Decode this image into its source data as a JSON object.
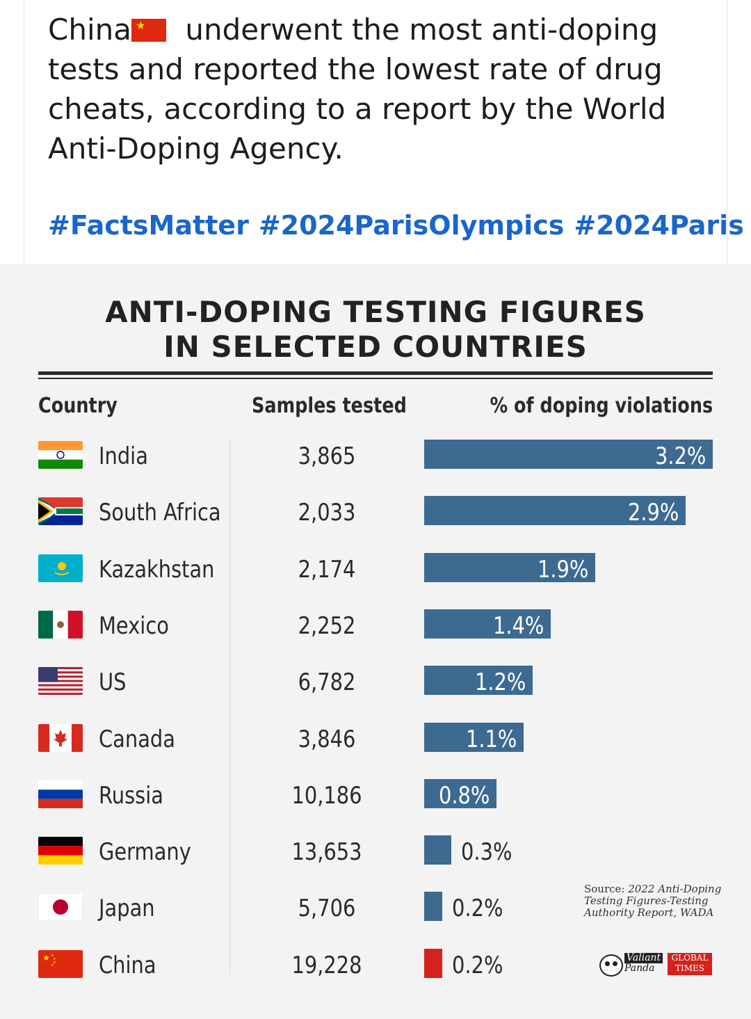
{
  "post": {
    "text_prefix": "China",
    "text_rest": " underwent the most anti-doping tests and reported the lowest rate of drug cheats, according to a report by the World Anti-Doping Agency.",
    "hashtags": [
      "#FactsMatter",
      "#2024ParisOlympics",
      "#2024Paris"
    ]
  },
  "colors": {
    "bar": "#3d6a91",
    "highlight": "#d4221c",
    "hashtag": "#1a66c9"
  },
  "chart_data": {
    "type": "bar",
    "title_line1": "ANTI-DOPING TESTING FIGURES",
    "title_line2": "IN SELECTED COUNTRIES",
    "columns": {
      "country": "Country",
      "samples": "Samples tested",
      "pct": "% of doping violations"
    },
    "categories": [
      "India",
      "South Africa",
      "Kazakhstan",
      "Mexico",
      "US",
      "Canada",
      "Russia",
      "Germany",
      "Japan",
      "China"
    ],
    "samples": [
      "3,865",
      "2,033",
      "2,174",
      "2,252",
      "6,782",
      "3,846",
      "10,186",
      "13,653",
      "5,706",
      "19,228"
    ],
    "values": [
      3.2,
      2.9,
      1.9,
      1.4,
      1.2,
      1.1,
      0.8,
      0.3,
      0.2,
      0.2
    ],
    "value_labels": [
      "3.2%",
      "2.9%",
      "1.9%",
      "1.4%",
      "1.2%",
      "1.1%",
      "0.8%",
      "0.3%",
      "0.2%",
      "0.2%"
    ],
    "flag_icons": [
      "india-flag-icon",
      "south-africa-flag-icon",
      "kazakhstan-flag-icon",
      "mexico-flag-icon",
      "us-flag-icon",
      "canada-flag-icon",
      "russia-flag-icon",
      "germany-flag-icon",
      "japan-flag-icon",
      "china-flag-icon"
    ],
    "xlim": [
      0,
      3.2
    ],
    "highlight": "China"
  },
  "source": {
    "label": "Source:",
    "text": "2022 Anti-Doping Testing Figures-Testing Authority Report, WADA"
  },
  "logos": {
    "valiant_1": "Valiant",
    "valiant_2": "Panda",
    "gt_1": "GLOBAL",
    "gt_2": "TIMES"
  }
}
